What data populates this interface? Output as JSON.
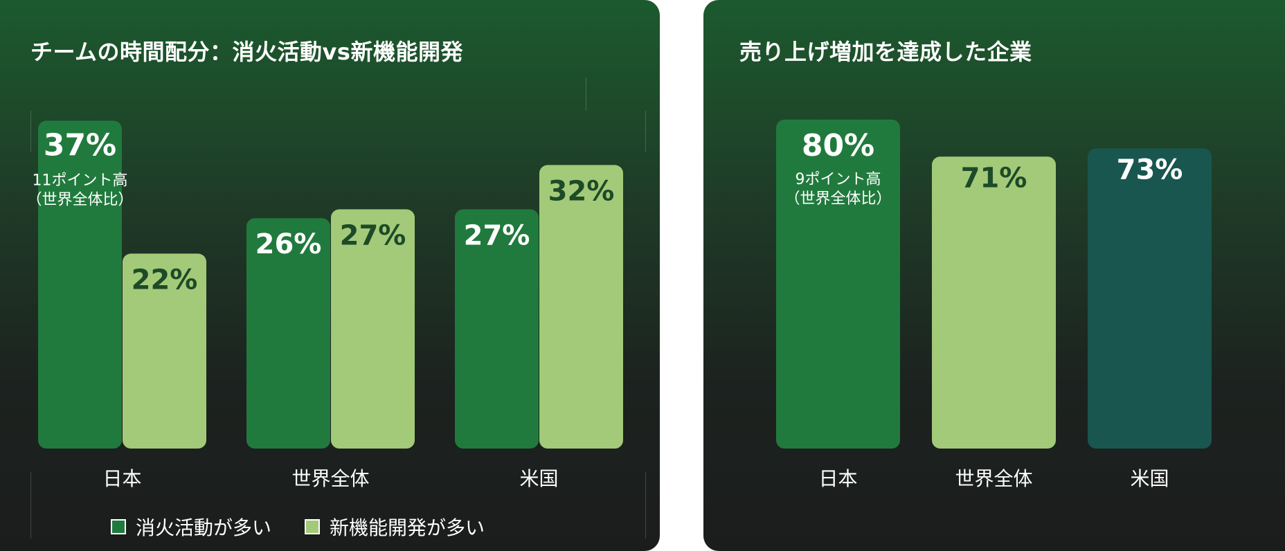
{
  "panels": {
    "left": {
      "title": "チームの時間配分：消火活動vs新機能開発",
      "legend": [
        {
          "label": "消火活動が多い",
          "color": "#217a3d"
        },
        {
          "label": "新機能開発が多い",
          "color": "#a3ca78"
        }
      ]
    },
    "right": {
      "title": "売り上げ増加を達成した企業"
    }
  },
  "chart_data": [
    {
      "type": "bar",
      "title": "チームの時間配分：消火活動vs新機能開発",
      "categories": [
        "日本",
        "世界全体",
        "米国"
      ],
      "series": [
        {
          "name": "消火活動が多い",
          "values": [
            37,
            26,
            27
          ],
          "color": "#217a3d",
          "labels": [
            "37%",
            "26%",
            "27%"
          ]
        },
        {
          "name": "新機能開発が多い",
          "values": [
            22,
            27,
            32
          ],
          "color": "#a3ca78",
          "labels": [
            "22%",
            "27%",
            "32%"
          ]
        }
      ],
      "annotations": [
        {
          "category": "日本",
          "series": "消火活動が多い",
          "text": [
            "11ポイント高",
            "（世界全体比）"
          ]
        }
      ],
      "unit": "%",
      "grid": false,
      "legend_position": "bottom"
    },
    {
      "type": "bar",
      "title": "売り上げ増加を達成した企業",
      "categories": [
        "日本",
        "世界全体",
        "米国"
      ],
      "values": [
        80,
        71,
        73
      ],
      "labels": [
        "80%",
        "71%",
        "73%"
      ],
      "colors": [
        "#217a3d",
        "#a3ca78",
        "#19564f"
      ],
      "annotations": [
        {
          "category": "日本",
          "text": [
            "9ポイント高",
            "（世界全体比）"
          ]
        }
      ],
      "unit": "%",
      "grid": false
    }
  ]
}
